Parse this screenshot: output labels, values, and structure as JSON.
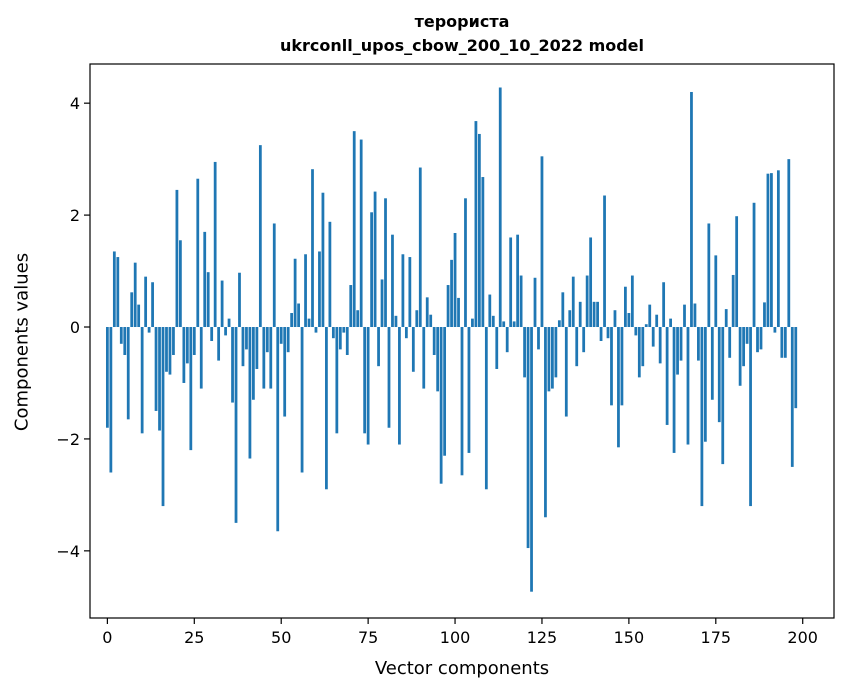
{
  "chart_data": {
    "type": "bar",
    "title": "терориста",
    "subtitle": "ukrconll_upos_cbow_200_10_2022 model",
    "xlabel": "Vector components",
    "ylabel": "Components values",
    "xlim": [
      -5,
      209
    ],
    "ylim": [
      -5.2,
      4.7
    ],
    "xticks": [
      0,
      25,
      50,
      75,
      100,
      125,
      150,
      175,
      200
    ],
    "yticks": [
      -4,
      -2,
      0,
      2,
      4
    ],
    "ytick_labels": [
      "−4",
      "−2",
      "0",
      "2",
      "4"
    ],
    "bar_color": "#1f77b4",
    "grid": false,
    "values": [
      -1.8,
      -2.6,
      1.35,
      1.25,
      -0.3,
      -0.5,
      -1.65,
      0.62,
      1.15,
      0.4,
      -1.9,
      0.9,
      -0.1,
      0.8,
      -1.5,
      -1.85,
      -3.2,
      -0.8,
      -0.85,
      -0.5,
      2.45,
      1.55,
      -1.0,
      -0.65,
      -2.2,
      -0.5,
      2.65,
      -1.1,
      1.7,
      0.98,
      -0.25,
      2.95,
      -0.6,
      0.83,
      -0.15,
      0.15,
      -1.35,
      -3.5,
      0.97,
      -0.7,
      -0.4,
      -2.35,
      -1.3,
      -0.75,
      3.25,
      -1.1,
      -0.45,
      -1.1,
      1.85,
      -3.65,
      -0.3,
      -1.6,
      -0.45,
      0.25,
      1.22,
      0.42,
      -2.6,
      1.3,
      0.15,
      2.82,
      -0.1,
      1.35,
      2.4,
      -2.9,
      1.88,
      -0.2,
      -1.9,
      -0.4,
      -0.1,
      -0.5,
      0.75,
      3.5,
      0.3,
      3.35,
      -1.9,
      -2.1,
      2.05,
      2.42,
      -0.7,
      0.85,
      2.3,
      -1.8,
      1.65,
      0.2,
      -2.1,
      1.3,
      -0.2,
      1.25,
      -0.8,
      0.3,
      2.85,
      -1.1,
      0.53,
      0.22,
      -0.5,
      -1.15,
      -2.8,
      -2.3,
      0.75,
      1.2,
      1.68,
      0.52,
      -2.65,
      2.3,
      -2.25,
      0.15,
      3.68,
      3.45,
      2.68,
      -2.9,
      0.58,
      0.2,
      -0.75,
      4.28,
      0.1,
      -0.45,
      1.6,
      0.1,
      1.65,
      0.92,
      -0.9,
      -3.95,
      -4.73,
      0.88,
      -0.4,
      3.05,
      -3.4,
      -1.15,
      -1.1,
      -0.9,
      0.12,
      0.62,
      -1.6,
      0.3,
      0.9,
      -0.7,
      0.45,
      -0.45,
      0.92,
      1.6,
      0.45,
      0.45,
      -0.25,
      2.35,
      -0.2,
      -1.4,
      0.3,
      -2.15,
      -1.4,
      0.72,
      0.25,
      0.92,
      -0.15,
      -0.9,
      -0.7,
      0.05,
      0.4,
      -0.35,
      0.22,
      -0.65,
      0.8,
      -1.75,
      0.15,
      -2.25,
      -0.85,
      -0.6,
      0.4,
      -2.1,
      4.2,
      0.42,
      -0.6,
      -3.2,
      -2.05,
      1.85,
      -1.3,
      1.28,
      -1.7,
      -2.45,
      0.32,
      -0.55,
      0.93,
      1.98,
      -1.05,
      -0.7,
      -0.3,
      -3.2,
      2.22,
      -0.45,
      -0.4,
      0.44,
      2.74,
      2.75,
      -0.1,
      2.8,
      -0.55,
      -0.55,
      3.0,
      -2.5,
      -1.45
    ]
  }
}
